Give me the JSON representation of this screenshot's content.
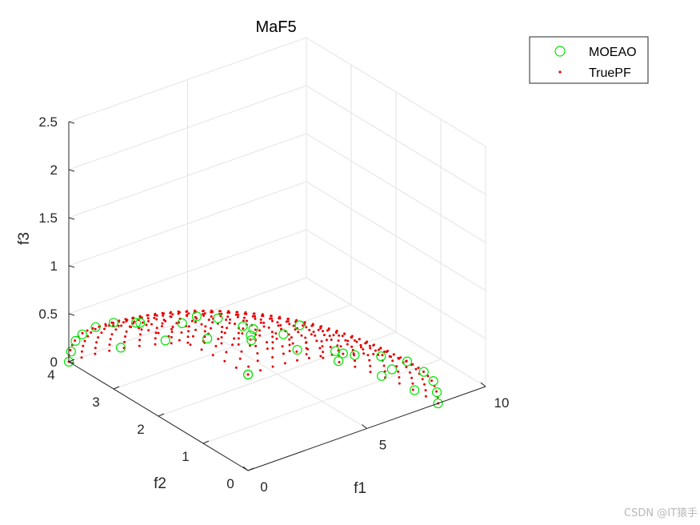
{
  "chart_data": {
    "type": "scatter",
    "title": "MaF5",
    "xlabel": "f1",
    "ylabel": "f2",
    "zlabel": "f3",
    "xlim": [
      0,
      10
    ],
    "ylim": [
      0,
      4
    ],
    "zlim": [
      0,
      2.5
    ],
    "xticks": [
      "0",
      "5",
      "10"
    ],
    "yticks": [
      "0",
      "1",
      "2",
      "3",
      "4"
    ],
    "zticks": [
      "0",
      "0.5",
      "1",
      "1.5",
      "2",
      "2.5"
    ],
    "grid": true,
    "legend_position": "top-right",
    "series": [
      {
        "name": "MOEAO",
        "marker": "open-circle",
        "color": "#00e600",
        "points": [
          [
            0.0,
            0.0,
            1.0
          ],
          [
            0.0,
            0.0,
            1.0
          ],
          [
            8.0,
            0.0,
            0.0
          ],
          [
            0.0,
            4.0,
            0.0
          ],
          [
            0.0,
            2.5,
            0.83
          ],
          [
            0.0,
            3.0,
            0.69
          ],
          [
            0.0,
            3.4,
            0.53
          ],
          [
            0.0,
            3.7,
            0.37
          ],
          [
            0.0,
            3.85,
            0.26
          ],
          [
            0.0,
            3.95,
            0.12
          ],
          [
            4.0,
            0.0,
            0.87
          ],
          [
            5.6,
            0.0,
            0.7
          ],
          [
            6.7,
            0.0,
            0.55
          ],
          [
            7.4,
            0.0,
            0.38
          ],
          [
            7.8,
            0.0,
            0.25
          ],
          [
            7.95,
            0.0,
            0.12
          ],
          [
            2.0,
            3.9,
            0.0
          ],
          [
            3.5,
            3.7,
            0.0
          ],
          [
            4.7,
            3.4,
            0.0
          ],
          [
            5.8,
            3.0,
            0.0
          ],
          [
            6.6,
            2.4,
            0.0
          ],
          [
            7.2,
            1.8,
            0.0
          ],
          [
            7.7,
            1.1,
            0.0
          ],
          [
            7.95,
            0.5,
            0.0
          ],
          [
            2.5,
            2.0,
            0.8
          ],
          [
            5.0,
            1.5,
            0.65
          ],
          [
            3.5,
            3.0,
            0.45
          ],
          [
            6.0,
            0.8,
            0.45
          ],
          [
            1.5,
            3.2,
            0.5
          ],
          [
            4.5,
            2.5,
            0.4
          ],
          [
            6.5,
            1.5,
            0.25
          ],
          [
            2.0,
            1.0,
            0.95
          ],
          [
            3.0,
            0.8,
            0.93
          ],
          [
            1.0,
            2.0,
            0.88
          ],
          [
            5.5,
            2.8,
            0.2
          ],
          [
            7.0,
            0.5,
            0.3
          ]
        ]
      },
      {
        "name": "TruePF",
        "marker": "dot",
        "color": "#e60000",
        "surface": "quarter-ellipsoid",
        "radii": [
          8,
          4,
          1
        ]
      }
    ]
  }
}
